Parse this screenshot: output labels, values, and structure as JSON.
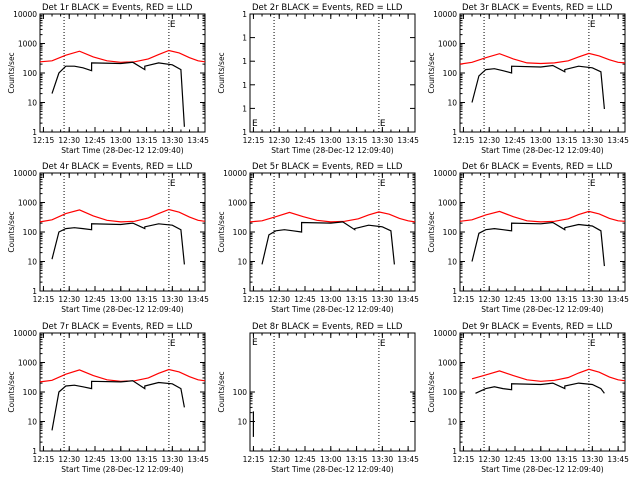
{
  "x_ticks": [
    "12:15",
    "12:30",
    "12:45",
    "13:00",
    "13:15",
    "13:30",
    "13:45"
  ],
  "x_label": "Start Time (28-Dec-12 12:09:40)",
  "y_label": "Counts/sec",
  "colors": {
    "events": "#000000",
    "lld": "#ff0000",
    "axes": "#000000"
  },
  "chart_data": [
    {
      "type": "line",
      "title": "Det 1r BLACK = Events, RED = LLD",
      "y_scale": "log",
      "ylim": [
        1,
        10000
      ],
      "y_ticks": [
        "1",
        "10",
        "100",
        "1000",
        "10000"
      ],
      "xlim": [
        "12:13",
        "13:49"
      ],
      "vlines": [
        "12:27",
        "13:28"
      ],
      "marker": {
        "x": "13:28",
        "y": 5000,
        "label": "E"
      },
      "series": [
        {
          "key": "lld",
          "x": [
            "12:13",
            "12:20",
            "12:28",
            "12:36",
            "12:44",
            "12:52",
            "13:00",
            "13:08",
            "13:16",
            "13:22",
            "13:28",
            "13:34",
            "13:40",
            "13:45",
            "13:49"
          ],
          "y": [
            240,
            260,
            400,
            550,
            350,
            260,
            230,
            240,
            300,
            420,
            580,
            480,
            330,
            260,
            240
          ]
        },
        {
          "key": "events",
          "x": [
            "12:20",
            "12:24",
            "12:28",
            "12:33",
            "12:38",
            "12:43",
            "12:43",
            "13:00",
            "13:07",
            "13:14",
            "13:14",
            "13:22",
            "13:30",
            "13:35",
            "13:37"
          ],
          "y": [
            20,
            100,
            170,
            170,
            150,
            120,
            220,
            210,
            230,
            130,
            170,
            220,
            190,
            130,
            1.5
          ]
        }
      ]
    },
    {
      "type": "line",
      "title": "Det 2r BLACK = Events, RED = LLD",
      "y_scale": "log",
      "ylim": [
        1,
        1.000001
      ],
      "y_ticks": [
        "1",
        "1",
        "1",
        "1",
        "1",
        "1"
      ],
      "xlim": [
        "12:13",
        "13:49"
      ],
      "vlines": [
        "12:27",
        "13:28"
      ],
      "marker": {
        "x": "13:28",
        "y": 1.00000008,
        "label": "E"
      },
      "marker2": {
        "x": "12:13",
        "y": 1.00000008,
        "label": "E"
      },
      "series": []
    },
    {
      "type": "line",
      "title": "Det 3r BLACK = Events, RED = LLD",
      "y_scale": "log",
      "ylim": [
        1,
        10000
      ],
      "y_ticks": [
        "1",
        "10",
        "100",
        "1000",
        "10000"
      ],
      "xlim": [
        "12:13",
        "13:49"
      ],
      "vlines": [
        "12:27",
        "13:28"
      ],
      "marker": {
        "x": "13:28",
        "y": 5000,
        "label": "E"
      },
      "series": [
        {
          "key": "lld",
          "x": [
            "12:13",
            "12:20",
            "12:28",
            "12:36",
            "12:44",
            "12:52",
            "13:00",
            "13:08",
            "13:16",
            "13:22",
            "13:28",
            "13:34",
            "13:40",
            "13:45",
            "13:49"
          ],
          "y": [
            200,
            230,
            330,
            450,
            300,
            220,
            210,
            220,
            260,
            350,
            460,
            380,
            280,
            230,
            220
          ]
        },
        {
          "key": "events",
          "x": [
            "12:20",
            "12:24",
            "12:28",
            "12:33",
            "12:38",
            "12:43",
            "12:43",
            "13:00",
            "13:07",
            "13:14",
            "13:14",
            "13:22",
            "13:30",
            "13:35",
            "13:37"
          ],
          "y": [
            10,
            80,
            130,
            140,
            120,
            100,
            170,
            160,
            180,
            110,
            130,
            170,
            150,
            110,
            6
          ]
        }
      ]
    },
    {
      "type": "line",
      "title": "Det 4r BLACK = Events, RED = LLD",
      "y_scale": "log",
      "ylim": [
        1,
        10000
      ],
      "y_ticks": [
        "1",
        "10",
        "100",
        "1000",
        "10000"
      ],
      "xlim": [
        "12:13",
        "13:49"
      ],
      "vlines": [
        "12:27",
        "13:28"
      ],
      "marker": {
        "x": "13:28",
        "y": 5000,
        "label": "E"
      },
      "series": [
        {
          "key": "lld",
          "x": [
            "12:13",
            "12:20",
            "12:28",
            "12:36",
            "12:44",
            "12:52",
            "13:00",
            "13:08",
            "13:16",
            "13:22",
            "13:28",
            "13:34",
            "13:40",
            "13:45",
            "13:49"
          ],
          "y": [
            220,
            260,
            420,
            560,
            350,
            250,
            220,
            230,
            300,
            420,
            580,
            470,
            320,
            250,
            230
          ]
        },
        {
          "key": "events",
          "x": [
            "12:20",
            "12:24",
            "12:28",
            "12:33",
            "12:38",
            "12:43",
            "12:43",
            "13:00",
            "13:07",
            "13:14",
            "13:14",
            "13:22",
            "13:30",
            "13:35",
            "13:37"
          ],
          "y": [
            12,
            100,
            130,
            140,
            130,
            120,
            190,
            180,
            200,
            130,
            150,
            190,
            170,
            120,
            8
          ]
        }
      ]
    },
    {
      "type": "line",
      "title": "Det 5r BLACK = Events, RED = LLD",
      "y_scale": "log",
      "ylim": [
        1,
        10000
      ],
      "y_ticks": [
        "1",
        "10",
        "100",
        "1000",
        "10000"
      ],
      "xlim": [
        "12:13",
        "13:49"
      ],
      "vlines": [
        "12:27",
        "13:28"
      ],
      "marker": {
        "x": "13:28",
        "y": 5000,
        "label": "E"
      },
      "series": [
        {
          "key": "lld",
          "x": [
            "12:13",
            "12:20",
            "12:28",
            "12:36",
            "12:44",
            "12:52",
            "13:00",
            "13:08",
            "13:16",
            "13:22",
            "13:28",
            "13:34",
            "13:40",
            "13:45",
            "13:49"
          ],
          "y": [
            220,
            240,
            330,
            460,
            330,
            250,
            220,
            230,
            280,
            380,
            480,
            400,
            290,
            240,
            220
          ]
        },
        {
          "key": "events",
          "x": [
            "12:20",
            "12:24",
            "12:28",
            "12:33",
            "12:38",
            "12:43",
            "12:43",
            "13:00",
            "13:07",
            "13:14",
            "13:14",
            "13:22",
            "13:30",
            "13:35",
            "13:37"
          ],
          "y": [
            8,
            80,
            110,
            120,
            110,
            100,
            210,
            200,
            220,
            120,
            130,
            170,
            150,
            110,
            8
          ]
        }
      ]
    },
    {
      "type": "line",
      "title": "Det 6r BLACK = Events, RED = LLD",
      "y_scale": "log",
      "ylim": [
        1,
        10000
      ],
      "y_ticks": [
        "1",
        "10",
        "100",
        "1000",
        "10000"
      ],
      "xlim": [
        "12:13",
        "13:49"
      ],
      "vlines": [
        "12:27",
        "13:28"
      ],
      "marker": {
        "x": "13:28",
        "y": 5000,
        "label": "E"
      },
      "series": [
        {
          "key": "lld",
          "x": [
            "12:13",
            "12:20",
            "12:28",
            "12:36",
            "12:44",
            "12:52",
            "13:00",
            "13:08",
            "13:16",
            "13:22",
            "13:28",
            "13:34",
            "13:40",
            "13:45",
            "13:49"
          ],
          "y": [
            230,
            260,
            380,
            500,
            330,
            240,
            220,
            230,
            280,
            390,
            500,
            410,
            290,
            240,
            230
          ]
        },
        {
          "key": "events",
          "x": [
            "12:20",
            "12:24",
            "12:28",
            "12:33",
            "12:38",
            "12:43",
            "12:43",
            "13:00",
            "13:07",
            "13:14",
            "13:14",
            "13:22",
            "13:30",
            "13:35",
            "13:37"
          ],
          "y": [
            10,
            90,
            120,
            130,
            120,
            110,
            200,
            190,
            210,
            120,
            140,
            180,
            160,
            110,
            7
          ]
        }
      ]
    },
    {
      "type": "line",
      "title": "Det 7r BLACK = Events, RED = LLD",
      "y_scale": "log",
      "ylim": [
        1,
        10000
      ],
      "y_ticks": [
        "1",
        "10",
        "100",
        "1000",
        "10000"
      ],
      "xlim": [
        "12:13",
        "13:49"
      ],
      "vlines": [
        "12:27",
        "13:28"
      ],
      "marker": {
        "x": "13:28",
        "y": 5000,
        "label": "E"
      },
      "series": [
        {
          "key": "lld",
          "x": [
            "12:13",
            "12:20",
            "12:28",
            "12:36",
            "12:44",
            "12:52",
            "13:00",
            "13:08",
            "13:16",
            "13:22",
            "13:28",
            "13:34",
            "13:40",
            "13:45",
            "13:49"
          ],
          "y": [
            220,
            250,
            400,
            560,
            360,
            260,
            230,
            240,
            300,
            430,
            580,
            480,
            330,
            260,
            240
          ]
        },
        {
          "key": "events",
          "x": [
            "12:20",
            "12:24",
            "12:28",
            "12:33",
            "12:38",
            "12:43",
            "12:43",
            "13:00",
            "13:07",
            "13:14",
            "13:14",
            "13:22",
            "13:30",
            "13:35",
            "13:37"
          ],
          "y": [
            5,
            100,
            160,
            170,
            150,
            130,
            230,
            220,
            240,
            130,
            160,
            210,
            190,
            130,
            30
          ]
        }
      ]
    },
    {
      "type": "line",
      "title": "Det 8r BLACK = Events, RED = LLD",
      "y_scale": "log",
      "ylim": [
        1,
        10000
      ],
      "y_ticks": [
        "10",
        "100"
      ],
      "xlim": [
        "12:13",
        "13:49"
      ],
      "vlines": [
        "12:27",
        "13:28"
      ],
      "marker": {
        "x": "13:28",
        "y": 5000,
        "label": "E"
      },
      "marker2": {
        "x": "12:13",
        "y": 5000,
        "label": "E"
      },
      "series": [
        {
          "key": "events",
          "x": [
            "12:15",
            "12:15"
          ],
          "y": [
            3,
            22
          ]
        }
      ]
    },
    {
      "type": "line",
      "title": "Det 9r BLACK = Events, RED = LLD",
      "y_scale": "log",
      "ylim": [
        1,
        10000
      ],
      "y_ticks": [
        "1",
        "10",
        "100",
        "1000",
        "10000"
      ],
      "xlim": [
        "12:13",
        "13:49"
      ],
      "vlines": [
        "12:27",
        "13:28"
      ],
      "marker": {
        "x": "13:28",
        "y": 5000,
        "label": "E"
      },
      "series": [
        {
          "key": "lld",
          "x": [
            "12:20",
            "12:28",
            "12:36",
            "12:44",
            "12:52",
            "13:00",
            "13:08",
            "13:16",
            "13:22",
            "13:28",
            "13:34",
            "13:40",
            "13:45",
            "13:49"
          ],
          "y": [
            280,
            380,
            520,
            360,
            260,
            230,
            250,
            310,
            440,
            590,
            470,
            320,
            260,
            240
          ]
        },
        {
          "key": "events",
          "x": [
            "12:22",
            "12:28",
            "12:33",
            "12:38",
            "12:43",
            "12:43",
            "13:00",
            "13:07",
            "13:14",
            "13:14",
            "13:22",
            "13:30",
            "13:35",
            "13:37"
          ],
          "y": [
            90,
            130,
            150,
            130,
            120,
            190,
            180,
            200,
            130,
            160,
            200,
            180,
            130,
            90
          ]
        }
      ]
    }
  ]
}
